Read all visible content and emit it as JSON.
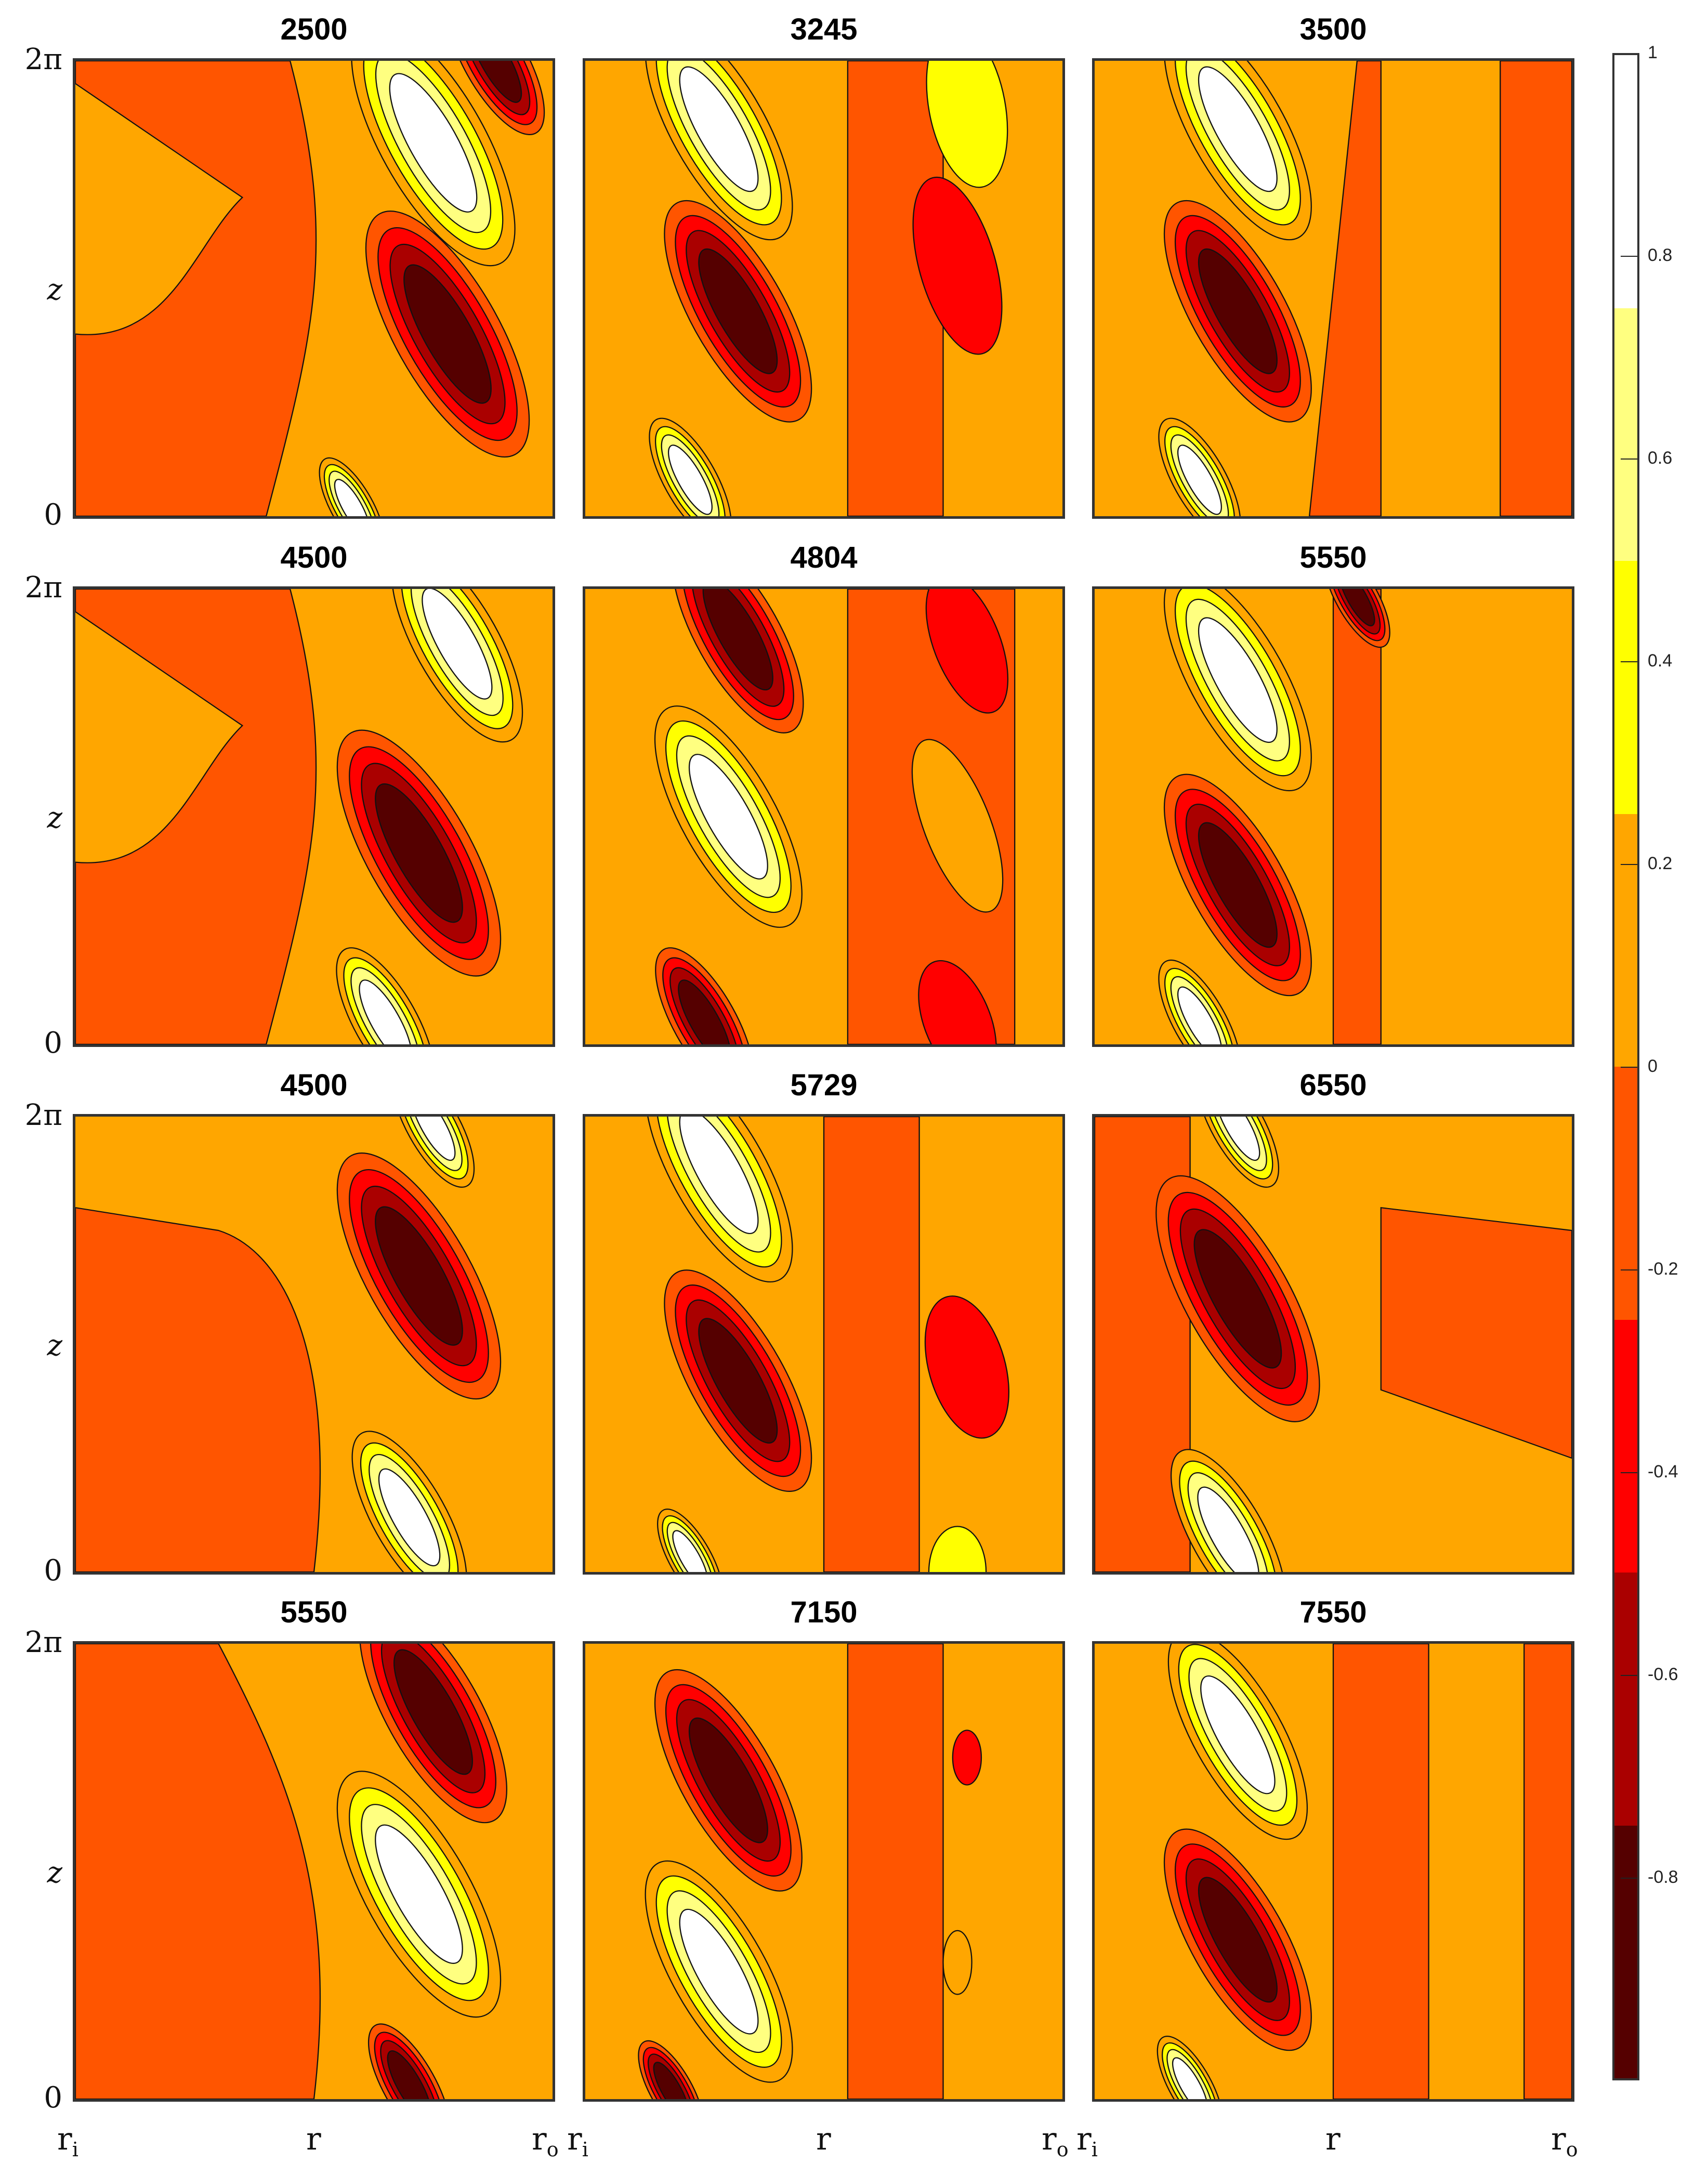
{
  "chart_data": {
    "type": "heatmap",
    "subtype": "filled-contour small multiples (4x3 grid)",
    "panel_titles": [
      "2500",
      "3245",
      "3500",
      "4500",
      "4804",
      "5550",
      "4500",
      "5729",
      "6550",
      "5550",
      "7150",
      "7550"
    ],
    "grid": {
      "rows": 4,
      "cols": 3
    },
    "xlabel": "r",
    "x_ticks": [
      "r_i",
      "r",
      "r_o"
    ],
    "ylabel": "z",
    "y_ticks": [
      "0",
      "z",
      "2π"
    ],
    "ylim": [
      "0",
      "2π"
    ],
    "xlim": [
      "r_i",
      "r_o"
    ],
    "colorbar": {
      "range": [
        -1,
        1
      ],
      "ticks": [
        1,
        0.8,
        0.6,
        0.4,
        0.2,
        0,
        -0.2,
        -0.4,
        -0.6,
        -0.8
      ],
      "levels": [
        {
          "from": 0.75,
          "to": 1.0,
          "color": "#ffffff"
        },
        {
          "from": 0.5,
          "to": 0.75,
          "color": "#ffff80"
        },
        {
          "from": 0.25,
          "to": 0.5,
          "color": "#ffff00"
        },
        {
          "from": 0.0,
          "to": 0.25,
          "color": "#ffa600"
        },
        {
          "from": -0.25,
          "to": 0.0,
          "color": "#ff5500"
        },
        {
          "from": -0.5,
          "to": -0.25,
          "color": "#ff0000"
        },
        {
          "from": -0.75,
          "to": -0.5,
          "color": "#aa0000"
        },
        {
          "from": -1.0,
          "to": -0.75,
          "color": "#550000"
        }
      ]
    },
    "description": "Each panel shows a field over radial (r_i to r_o) and axial (0 to 2π) coordinates with tilted alternating positive (white/yellow) and negative (dark red) cells near mid-to-outer radius."
  },
  "labels": {
    "y_top": "2π",
    "y_mid": "z",
    "y_bot": "0",
    "x_left": "r",
    "x_left_sub": "i",
    "x_mid": "r",
    "x_right": "r",
    "x_right_sub": "o"
  },
  "colorbar_ticks": [
    "1",
    "0.8",
    "0.6",
    "0.4",
    "0.2",
    "0",
    "-0.2",
    "-0.4",
    "-0.6",
    "-0.8"
  ]
}
